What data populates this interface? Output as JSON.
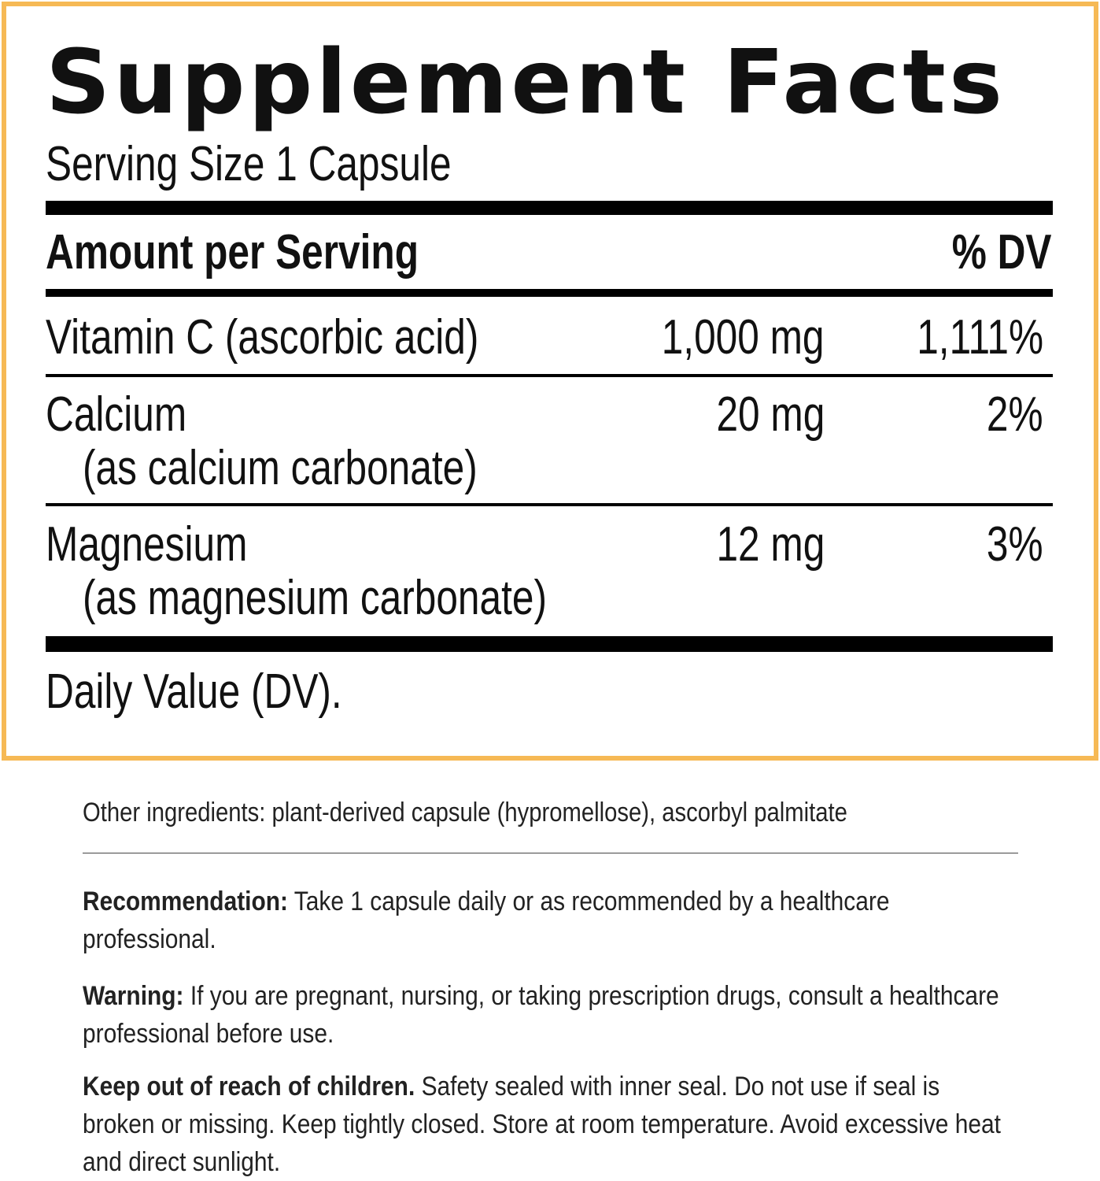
{
  "border_color": "#f6b955",
  "title": "Supplement Facts",
  "serving_size": "Serving Size 1 Capsule",
  "header": {
    "amount": "Amount per Serving",
    "dv": "% DV"
  },
  "rows": [
    {
      "name": "Vitamin C (ascorbic acid)",
      "sub": "",
      "amount": "1,000 mg",
      "dv": "1,111%"
    },
    {
      "name": "Calcium",
      "sub": "(as calcium carbonate)",
      "amount": "20 mg",
      "dv": "2%"
    },
    {
      "name": "Magnesium",
      "sub": "(as magnesium carbonate)",
      "amount": "12 mg",
      "dv": "3%"
    }
  ],
  "footnote": "Daily Value (DV).",
  "other_ingredients": "Other ingredients: plant-derived capsule (hypromellose), ascorbyl palmitate",
  "recommendation": {
    "label": "Recommendation:",
    "text": " Take 1 capsule daily or as recommended by a healthcare professional."
  },
  "warning": {
    "label": "Warning:",
    "text": " If you are pregnant, nursing, or taking prescription drugs, consult a healthcare professional before use."
  },
  "keep_out": {
    "label": "Keep out of reach of children.",
    "text": " Safety sealed with inner seal. Do not use if seal is broken or missing. Keep tightly closed. Store at room temperature. Avoid excessive heat and direct sunlight."
  }
}
